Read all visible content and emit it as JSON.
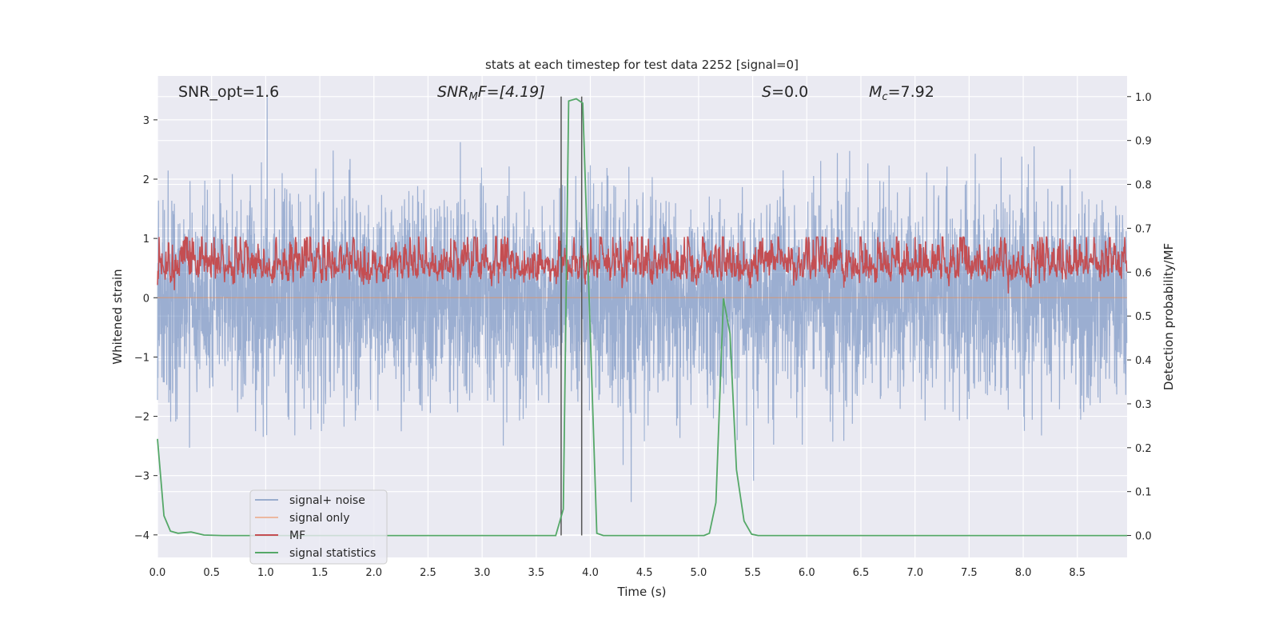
{
  "chart_data": {
    "type": "line",
    "title": "stats at each timestep for test data 2252 [signal=0]",
    "xlabel": "Time (s)",
    "ylabel": "Whitened strain",
    "ylabel_right": "Detection probability/MF",
    "xlim": [
      0,
      8.96
    ],
    "ylim": [
      -4.38,
      3.74
    ],
    "ylim_right": [
      -0.05,
      1.047
    ],
    "grid": true,
    "x_ticks": [
      "0.0",
      "0.5",
      "1.0",
      "1.5",
      "2.0",
      "2.5",
      "3.0",
      "3.5",
      "4.0",
      "4.5",
      "5.0",
      "5.5",
      "6.0",
      "6.5",
      "7.0",
      "7.5",
      "8.0",
      "8.5"
    ],
    "y_ticks": [
      "−4",
      "−3",
      "−2",
      "−1",
      "0",
      "1",
      "2",
      "3"
    ],
    "y_ticks_right": [
      "0.0",
      "0.1",
      "0.2",
      "0.3",
      "0.4",
      "0.5",
      "0.6",
      "0.7",
      "0.8",
      "0.9",
      "1.0"
    ],
    "annotations": {
      "snr_opt": "SNR_opt=1.6",
      "snr_mf_base": "SNR",
      "snr_mf_sub": "M",
      "snr_mf_rest": "F=[4.19]",
      "s_label": "S",
      "s_value": "=0.0",
      "mc_base": "M",
      "mc_sub": "c",
      "mc_value": "=7.92"
    },
    "vertical_lines_x": [
      3.73,
      3.92
    ],
    "legend": {
      "placement": "lower-left",
      "entries": [
        "signal+ noise",
        "signal only",
        "MF",
        "signal statistics"
      ]
    },
    "series": [
      {
        "name": "signal+ noise",
        "axis": "left",
        "color": "#4c72b0",
        "description_range": [
          -4.0,
          3.4
        ]
      },
      {
        "name": "signal only",
        "axis": "left",
        "color": "#dd8452",
        "constant": 0
      },
      {
        "name": "MF",
        "axis": "right",
        "color": "#c44e52",
        "description_range": [
          0.0,
          0.68
        ]
      },
      {
        "name": "signal statistics",
        "axis": "right",
        "color": "#55a868",
        "x": [
          0.0,
          0.06,
          0.12,
          0.19,
          0.31,
          0.43,
          0.6,
          3.68,
          3.75,
          3.8,
          3.87,
          3.93,
          4.06,
          4.12,
          5.05,
          5.1,
          5.16,
          5.23,
          5.29,
          5.35,
          5.42,
          5.49,
          5.55,
          8.96
        ],
        "y": [
          0.22,
          0.045,
          0.01,
          0.005,
          0.008,
          0.001,
          0.0,
          0.0,
          0.06,
          0.99,
          0.995,
          0.985,
          0.005,
          0.0,
          0.0,
          0.005,
          0.075,
          0.54,
          0.46,
          0.15,
          0.033,
          0.003,
          0.0,
          0.0
        ]
      }
    ],
    "colors": {
      "background": "#eaeaf2",
      "grid": "#ffffff",
      "vline": "#555555"
    }
  }
}
